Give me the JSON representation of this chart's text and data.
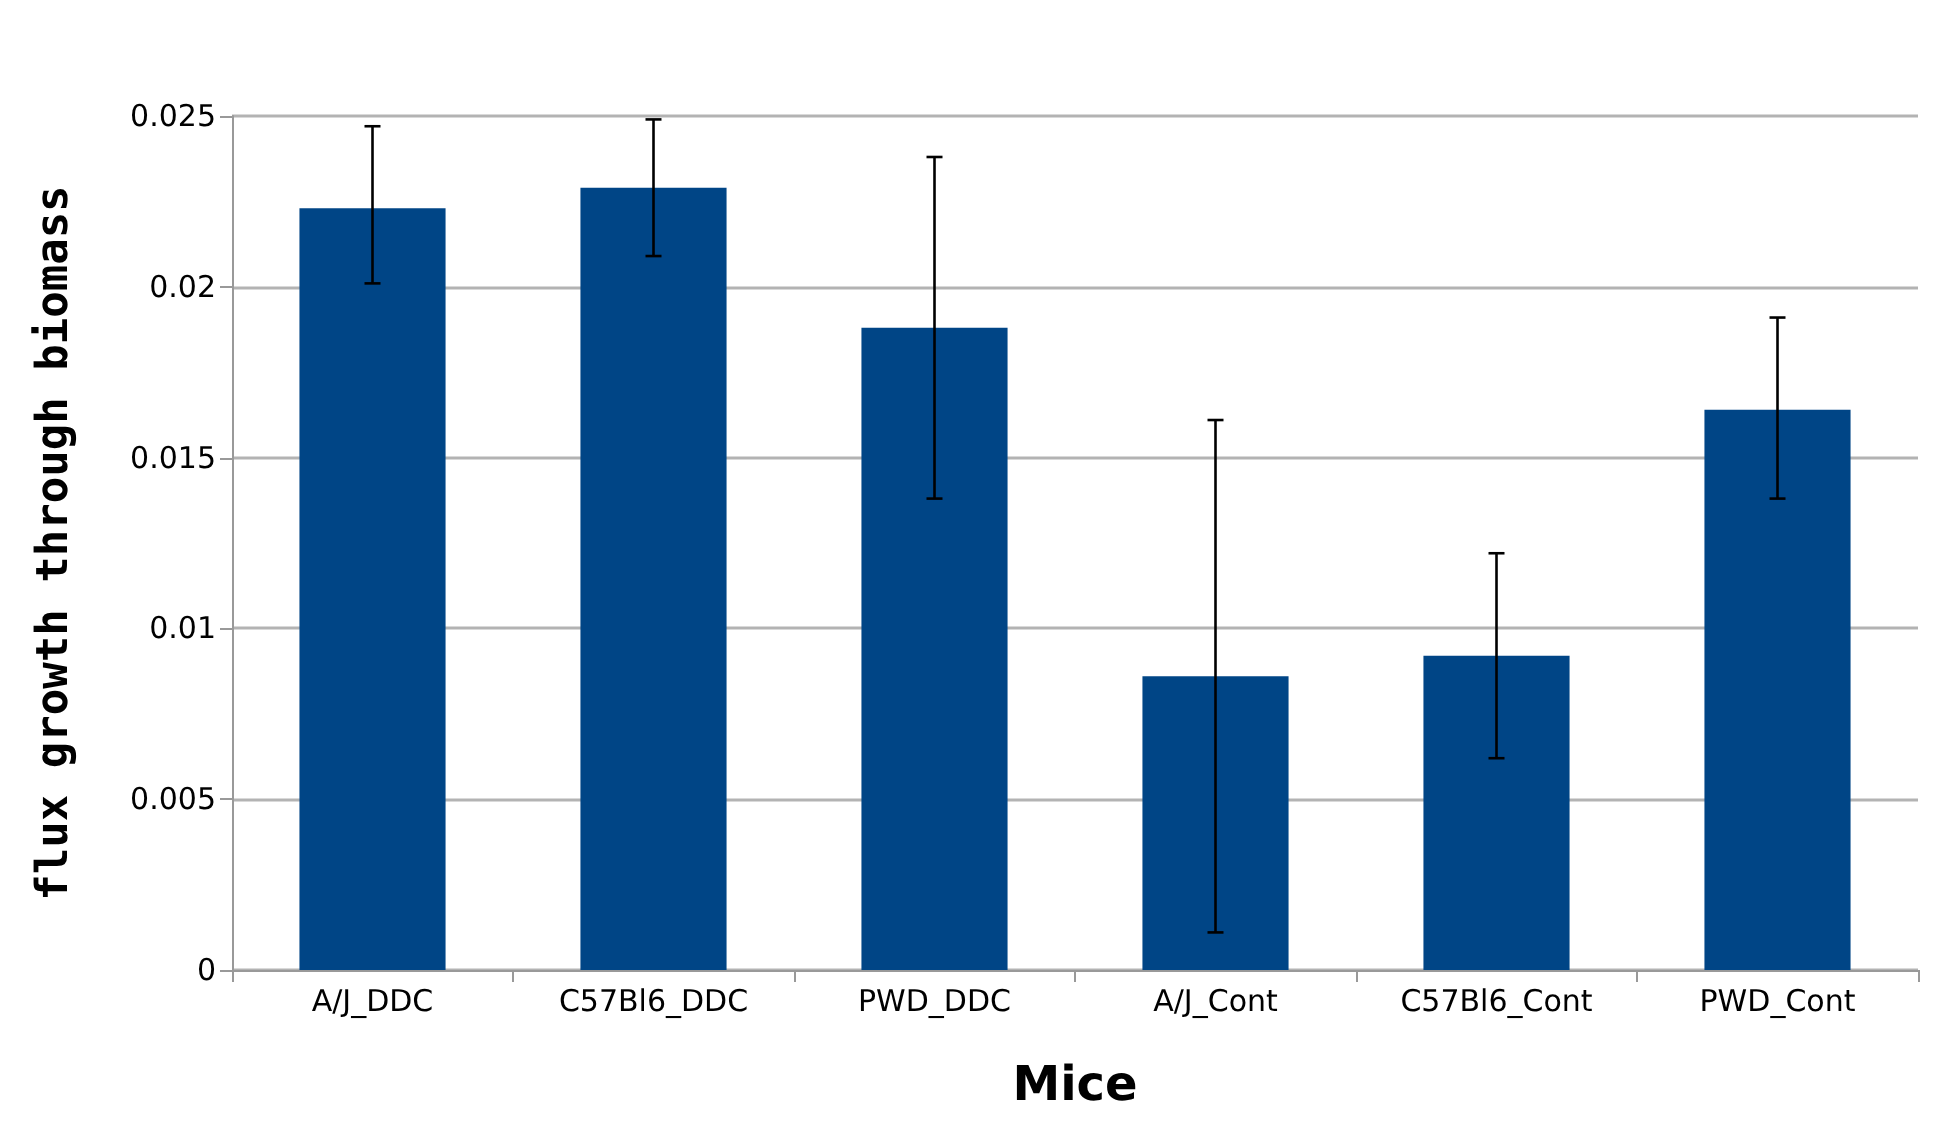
{
  "chart_data": {
    "type": "bar",
    "xlabel": "Mice",
    "ylabel": "flux growth through biomass",
    "categories": [
      "A/J_DDC",
      "C57Bl6_DDC",
      "PWD_DDC",
      "A/J_Cont",
      "C57Bl6_Cont",
      "PWD_Cont"
    ],
    "values": [
      0.0223,
      0.0229,
      0.0188,
      0.0086,
      0.0092,
      0.0164
    ],
    "errors": [
      [
        0.0201,
        0.0247
      ],
      [
        0.0209,
        0.0249
      ],
      [
        0.0138,
        0.0238
      ],
      [
        0.0011,
        0.0161
      ],
      [
        0.0062,
        0.0122
      ],
      [
        0.0138,
        0.0191
      ]
    ],
    "color": "#004586",
    "ylim": [
      0,
      0.025
    ],
    "yticks": [
      0,
      0.005,
      0.01,
      0.015,
      0.02,
      0.025
    ],
    "grid": "y"
  }
}
